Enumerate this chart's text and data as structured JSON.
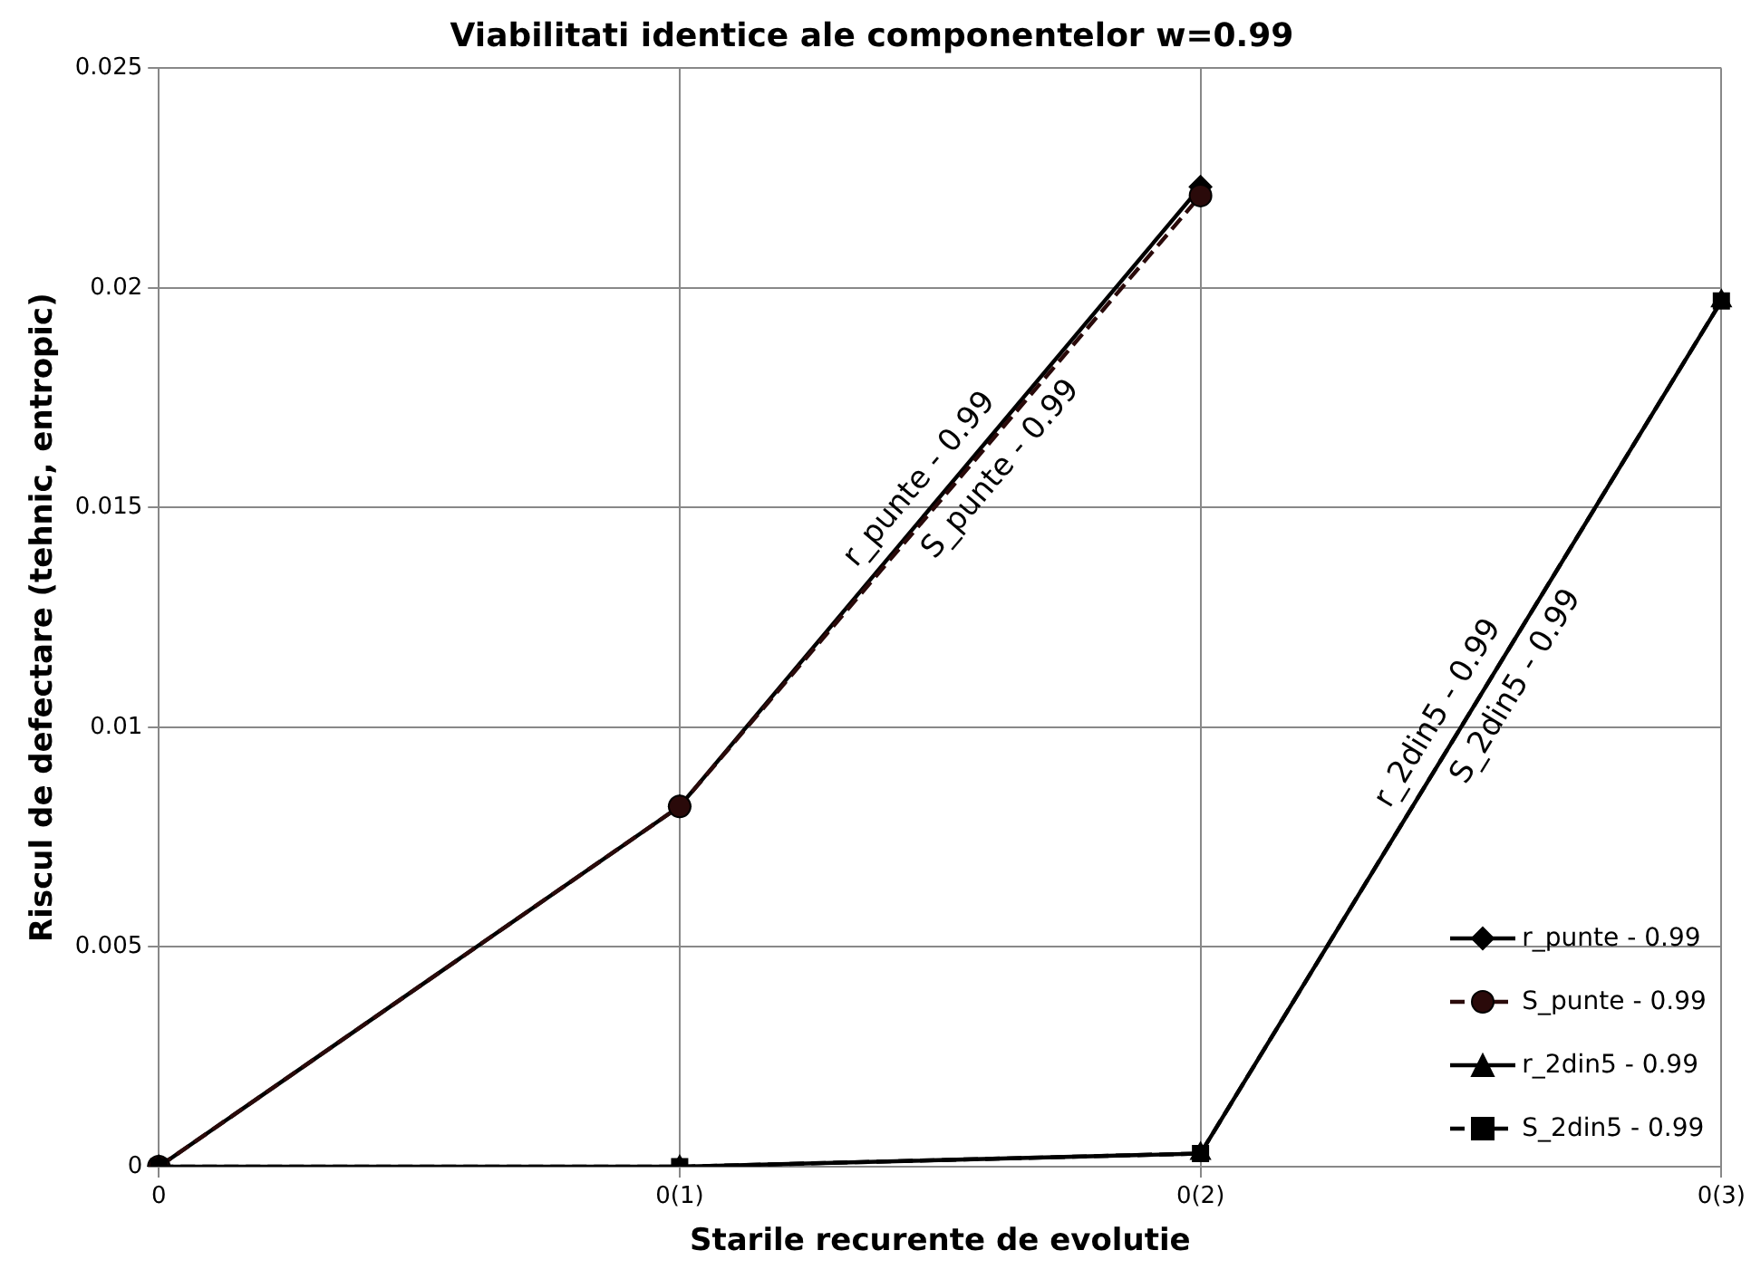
{
  "chart_data": {
    "type": "line",
    "title": "Viabilitati identice ale componentelor w=0.99",
    "xlabel": "Starile recurente de evolutie",
    "ylabel": "Riscul de defectare (tehnic, entropic)",
    "categories": [
      "0",
      "0(1)",
      "0(2)",
      "0(3)"
    ],
    "series": [
      {
        "name": "r_punte - 0.99",
        "color": "#000000",
        "marker": "diamond",
        "line_style": "solid",
        "values": [
          0,
          0.0082,
          0.0223,
          null
        ]
      },
      {
        "name": "S_punte - 0.99",
        "color": "#2a0a0a",
        "marker": "circle",
        "line_style": "dashed",
        "values": [
          0,
          0.0082,
          0.0221,
          null
        ]
      },
      {
        "name": "r_2din5 - 0.99",
        "color": "#000000",
        "marker": "triangle",
        "line_style": "solid",
        "values": [
          0,
          0,
          0.0003,
          0.0197
        ]
      },
      {
        "name": "S_2din5 - 0.99",
        "color": "#000000",
        "marker": "square",
        "line_style": "dashed",
        "values": [
          0,
          0,
          0.0003,
          0.0197
        ]
      }
    ],
    "annotations": [
      "r_punte - 0.99",
      "S_punte - 0.99",
      "r_2din5 - 0.99",
      "S_2din5 - 0.99"
    ],
    "ylim": [
      0,
      0.025
    ],
    "yticks": [
      0,
      0.005,
      0.01,
      0.015,
      0.02,
      0.025
    ],
    "grid": true,
    "legend": "bottom right"
  }
}
